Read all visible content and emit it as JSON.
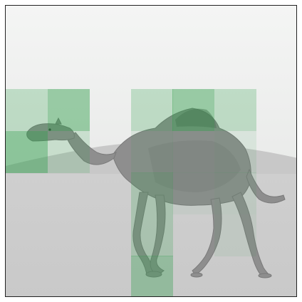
{
  "image": {
    "subject": "camel-walking-in-desert",
    "colors": {
      "sky": "#f1f2f1",
      "ground": "#cdcdcd",
      "dune": "#c7c7c7",
      "camel": "#8c8c8c",
      "camel_dark": "#6e6e6e",
      "overlay": "#2e9e4a"
    }
  },
  "overlay_grid": {
    "rows": 7,
    "cols": 7,
    "cells": [
      {
        "row": 2,
        "col": 0,
        "alpha": 0.25
      },
      {
        "row": 2,
        "col": 1,
        "alpha": 0.45
      },
      {
        "row": 2,
        "col": 3,
        "alpha": 0.25
      },
      {
        "row": 2,
        "col": 4,
        "alpha": 0.45
      },
      {
        "row": 2,
        "col": 5,
        "alpha": 0.25
      },
      {
        "row": 3,
        "col": 0,
        "alpha": 0.5
      },
      {
        "row": 3,
        "col": 1,
        "alpha": 0.18
      },
      {
        "row": 3,
        "col": 3,
        "alpha": 0.1
      },
      {
        "row": 3,
        "col": 4,
        "alpha": 0.05
      },
      {
        "row": 3,
        "col": 5,
        "alpha": 0.1
      },
      {
        "row": 4,
        "col": 3,
        "alpha": 0.22
      },
      {
        "row": 4,
        "col": 4,
        "alpha": 0.05
      },
      {
        "row": 4,
        "col": 5,
        "alpha": 0.1
      },
      {
        "row": 5,
        "col": 3,
        "alpha": 0.22
      },
      {
        "row": 5,
        "col": 5,
        "alpha": 0.08
      },
      {
        "row": 6,
        "col": 3,
        "alpha": 0.35
      }
    ]
  }
}
